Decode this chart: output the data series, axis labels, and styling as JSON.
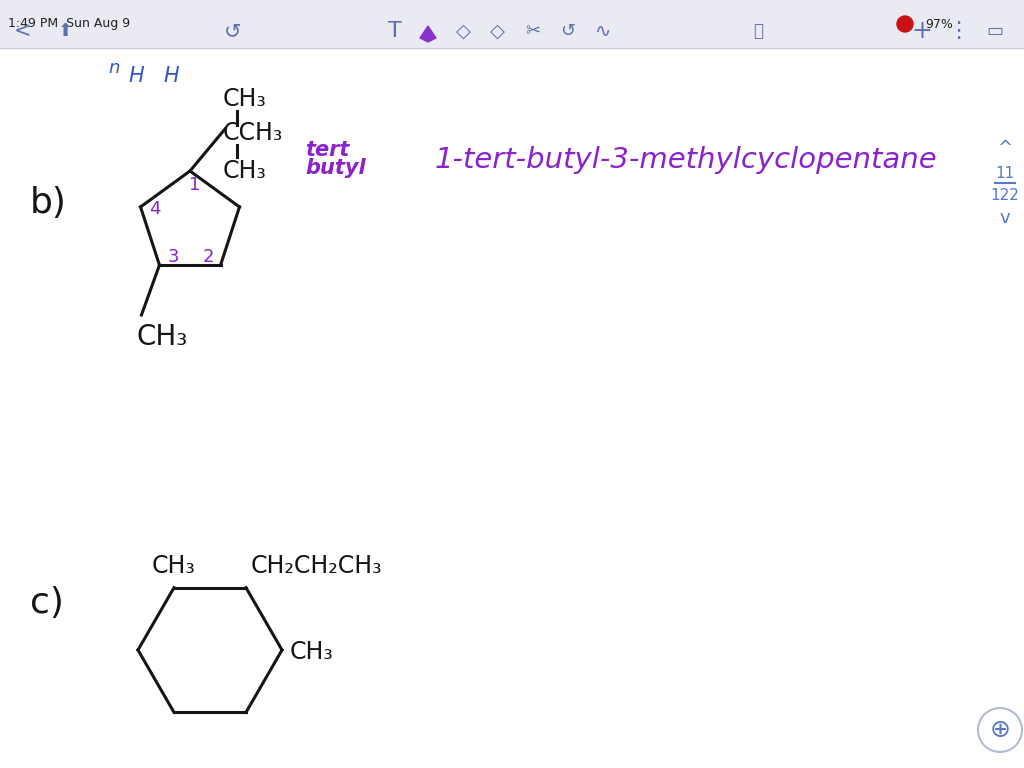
{
  "bg_color": "#f5f6fa",
  "toolbar_bg": "#e9eaf2",
  "title_time": "1:49 PM  Sun Aug 9",
  "battery": "97%",
  "page_num": "11",
  "page_total": "122",
  "label_b": "b)",
  "label_c": "c)",
  "purple_color": "#8b22cc",
  "blue_color": "#3355cc",
  "black_color": "#151515",
  "name_b": "1-tert-butyl-3-methylcyclopentane"
}
